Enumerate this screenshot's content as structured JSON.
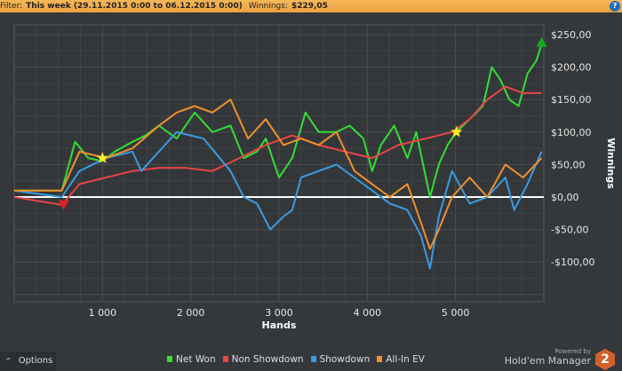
{
  "filter": {
    "label": "Filter:",
    "value": "This week (29.11.2015 0:00 to 06.12.2015 0:00)",
    "winnings_label": "Winnings:",
    "winnings_value": "$229,05"
  },
  "help_icon": "?",
  "options_label": "Options",
  "options_icon": "^",
  "brand": {
    "powered_by": "Powered by",
    "name": "Hold'em Manager",
    "logo_text": "2"
  },
  "colors": {
    "net_won": "#33dd33",
    "non_showdown": "#e84545",
    "showdown": "#3a9be0",
    "all_in_ev": "#f0902a"
  },
  "chart_data": {
    "type": "line",
    "xlabel": "Hands",
    "ylabel": "Winnings",
    "xlim": [
      0,
      6000
    ],
    "ylim": [
      -150,
      275
    ],
    "xticks": [
      1000,
      2000,
      3000,
      4000,
      5000
    ],
    "xtick_labels": [
      "1 000",
      "2 000",
      "3 000",
      "4 000",
      "5 000"
    ],
    "yticks": [
      250,
      200,
      150,
      100,
      50,
      0,
      -50,
      -100
    ],
    "ytick_labels": [
      "$250,00",
      "$200,00",
      "$150,00",
      "$100,00",
      "$50,00",
      "$0,00",
      "-$50,00",
      "-$100,00"
    ],
    "legend_position": "bottom",
    "series": [
      {
        "name": "Net Won",
        "key": "net_won",
        "x": [
          0,
          540,
          690,
          840,
          1000,
          1140,
          1340,
          1490,
          1640,
          1840,
          2045,
          2245,
          2450,
          2600,
          2750,
          2850,
          3000,
          3150,
          3300,
          3450,
          3650,
          3800,
          3955,
          4055,
          4155,
          4305,
          4455,
          4555,
          4710,
          4810,
          4910,
          5010,
          5160,
          5310,
          5410,
          5510,
          5610,
          5715,
          5815,
          5915,
          5975
        ],
        "y": [
          10,
          10,
          85,
          60,
          55,
          70,
          85,
          95,
          110,
          90,
          130,
          100,
          110,
          60,
          70,
          90,
          30,
          60,
          130,
          100,
          100,
          110,
          90,
          40,
          80,
          110,
          60,
          100,
          0,
          50,
          80,
          100,
          120,
          140,
          200,
          180,
          150,
          140,
          190,
          210,
          235
        ]
      },
      {
        "name": "Non Showdown",
        "key": "non_showdown",
        "x": [
          0,
          540,
          740,
          1040,
          1340,
          1640,
          1945,
          2245,
          2550,
          2850,
          3150,
          3450,
          3750,
          4055,
          4355,
          4660,
          4960,
          5160,
          5360,
          5565,
          5765,
          5975
        ],
        "y": [
          0,
          -12,
          20,
          30,
          40,
          45,
          45,
          40,
          60,
          80,
          95,
          80,
          70,
          60,
          80,
          90,
          100,
          120,
          150,
          170,
          160,
          160
        ]
      },
      {
        "name": "Showdown",
        "key": "showdown",
        "x": [
          0,
          540,
          740,
          1040,
          1340,
          1440,
          1840,
          2145,
          2450,
          2600,
          2750,
          2900,
          3050,
          3150,
          3250,
          3450,
          3650,
          3855,
          4055,
          4255,
          4455,
          4610,
          4710,
          4810,
          4960,
          5160,
          5360,
          5565,
          5665,
          5815,
          5975
        ],
        "y": [
          10,
          0,
          40,
          60,
          70,
          40,
          100,
          90,
          40,
          0,
          -10,
          -50,
          -30,
          -20,
          30,
          40,
          50,
          30,
          10,
          -10,
          -20,
          -60,
          -110,
          -30,
          40,
          -10,
          0,
          30,
          -20,
          20,
          70
        ]
      },
      {
        "name": "All-In EV",
        "key": "all_in_ev",
        "x": [
          0,
          540,
          740,
          1040,
          1340,
          1640,
          1840,
          2045,
          2245,
          2450,
          2650,
          2850,
          3050,
          3250,
          3450,
          3650,
          3855,
          4055,
          4255,
          4455,
          4610,
          4710,
          4810,
          4960,
          5160,
          5360,
          5565,
          5765,
          5975
        ],
        "y": [
          10,
          10,
          70,
          60,
          75,
          110,
          130,
          140,
          130,
          150,
          90,
          120,
          80,
          90,
          80,
          100,
          40,
          20,
          0,
          20,
          -40,
          -80,
          -50,
          0,
          30,
          0,
          50,
          30,
          60
        ]
      }
    ],
    "markers": [
      {
        "type": "triangle-down",
        "x": 560,
        "y": -12,
        "color": "#e02020"
      },
      {
        "type": "star",
        "x": 1000,
        "y": 60,
        "color": "#ffee22"
      },
      {
        "type": "star",
        "x": 5010,
        "y": 100,
        "color": "#ffee22"
      },
      {
        "type": "triangle-up",
        "x": 5975,
        "y": 238,
        "color": "#11aa22"
      }
    ]
  }
}
